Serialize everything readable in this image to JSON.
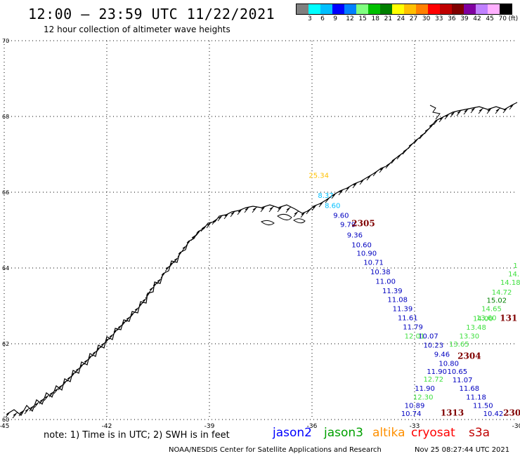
{
  "header": {
    "title": "12:00 – 23:59 UTC 11/22/2021",
    "subtitle": "12 hour collection of altimeter wave heights"
  },
  "legend": {
    "colors": [
      "#808080",
      "#00ffff",
      "#00bfff",
      "#0000ff",
      "#0080ff",
      "#80ff80",
      "#00c000",
      "#008000",
      "#ffff00",
      "#ffc000",
      "#ff8000",
      "#ff0000",
      "#c00000",
      "#800000",
      "#8000a0",
      "#c080ff",
      "#ffb0ff",
      "#000000"
    ],
    "labels": [
      "3",
      "6",
      "9",
      "12",
      "15",
      "18",
      "21",
      "24",
      "27",
      "30",
      "33",
      "36",
      "39",
      "42",
      "45",
      "70"
    ],
    "unit": "(ft)"
  },
  "axes": {
    "lon_ticks": [
      "-45",
      "-42",
      "-39",
      "-36",
      "-33",
      "-30"
    ],
    "lat_ticks": [
      "60",
      "62",
      "64",
      "66",
      "68",
      "70"
    ]
  },
  "tracks": [
    {
      "label": "2305",
      "color": "#800000"
    },
    {
      "label": "2304",
      "color": "#800000"
    },
    {
      "label": "1313",
      "color": "#800000"
    },
    {
      "label": "131",
      "color": "#800000"
    },
    {
      "label": "230",
      "color": "#800000"
    }
  ],
  "readings": [
    {
      "v": "25.34",
      "c": "#ffc000",
      "lon": -35.8,
      "lat": 66.38
    },
    {
      "v": "8.37",
      "c": "#00bfff",
      "lon": -35.6,
      "lat": 65.85
    },
    {
      "v": "8.60",
      "c": "#00bfff",
      "lon": -35.4,
      "lat": 65.58
    },
    {
      "v": "9.60",
      "c": "#0000c0",
      "lon": -35.15,
      "lat": 65.32
    },
    {
      "v": "9.79",
      "c": "#0000c0",
      "lon": -34.95,
      "lat": 65.08
    },
    {
      "v": "9.36",
      "c": "#0000c0",
      "lon": -34.75,
      "lat": 64.81
    },
    {
      "v": "10.60",
      "c": "#0000c0",
      "lon": -34.55,
      "lat": 64.55
    },
    {
      "v": "10.90",
      "c": "#0000c0",
      "lon": -34.4,
      "lat": 64.32
    },
    {
      "v": "10.71",
      "c": "#0000c0",
      "lon": -34.2,
      "lat": 64.08
    },
    {
      "v": "10.38",
      "c": "#0000c0",
      "lon": -34.0,
      "lat": 63.83
    },
    {
      "v": "11.00",
      "c": "#0000c0",
      "lon": -33.85,
      "lat": 63.58
    },
    {
      "v": "11.39",
      "c": "#0000c0",
      "lon": -33.65,
      "lat": 63.33
    },
    {
      "v": "11.08",
      "c": "#0000c0",
      "lon": -33.5,
      "lat": 63.1
    },
    {
      "v": "11.39",
      "c": "#0000c0",
      "lon": -33.35,
      "lat": 62.86
    },
    {
      "v": "11.61",
      "c": "#0000c0",
      "lon": -33.2,
      "lat": 62.62
    },
    {
      "v": "11.79",
      "c": "#0000c0",
      "lon": -33.05,
      "lat": 62.38
    },
    {
      "v": "10.07",
      "c": "#0000c0",
      "lon": -32.6,
      "lat": 62.14
    },
    {
      "v": "10.23",
      "c": "#0000c0",
      "lon": -32.45,
      "lat": 61.9
    },
    {
      "v": "9.46",
      "c": "#0000c0",
      "lon": -32.2,
      "lat": 61.66
    },
    {
      "v": "10.80",
      "c": "#0000c0",
      "lon": -32.0,
      "lat": 61.42
    },
    {
      "v": "11.90",
      "c": "#0000c0",
      "lon": -32.35,
      "lat": 61.2
    },
    {
      "v": "10.65",
      "c": "#0000c0",
      "lon": -31.75,
      "lat": 61.2
    },
    {
      "v": "11.07",
      "c": "#0000c0",
      "lon": -31.6,
      "lat": 60.98
    },
    {
      "v": "11.90",
      "c": "#0000c0",
      "lon": -32.7,
      "lat": 60.76
    },
    {
      "v": "11.68",
      "c": "#0000c0",
      "lon": -31.4,
      "lat": 60.76
    },
    {
      "v": "11.18",
      "c": "#0000c0",
      "lon": -31.2,
      "lat": 60.53
    },
    {
      "v": "10.89",
      "c": "#0000c0",
      "lon": -33.0,
      "lat": 60.31
    },
    {
      "v": "11.50",
      "c": "#0000c0",
      "lon": -31.0,
      "lat": 60.31
    },
    {
      "v": "10.74",
      "c": "#0000c0",
      "lon": -33.1,
      "lat": 60.09
    },
    {
      "v": "10.42",
      "c": "#0000c0",
      "lon": -30.7,
      "lat": 60.09
    },
    {
      "v": "12.01",
      "c": "#40e040",
      "lon": -33.0,
      "lat": 62.14
    },
    {
      "v": "13.65",
      "c": "#40e040",
      "lon": -31.7,
      "lat": 61.93
    },
    {
      "v": "13.30",
      "c": "#40e040",
      "lon": -31.4,
      "lat": 62.14
    },
    {
      "v": "13.48",
      "c": "#40e040",
      "lon": -31.2,
      "lat": 62.37
    },
    {
      "v": "14.00",
      "c": "#40e040",
      "lon": -31.0,
      "lat": 62.6
    },
    {
      "v": "13.60",
      "c": "#40e040",
      "lon": -30.9,
      "lat": 62.62
    },
    {
      "v": "14.65",
      "c": "#40e040",
      "lon": -30.75,
      "lat": 62.86
    },
    {
      "v": "15.02",
      "c": "#008000",
      "lon": -30.6,
      "lat": 63.08
    },
    {
      "v": "14.72",
      "c": "#40e040",
      "lon": -30.45,
      "lat": 63.3
    },
    {
      "v": "14.18",
      "c": "#40e040",
      "lon": -30.2,
      "lat": 63.56
    },
    {
      "v": "14.",
      "c": "#40e040",
      "lon": -30.1,
      "lat": 63.78
    },
    {
      "v": "1",
      "c": "#40e040",
      "lon": -30.05,
      "lat": 64.0
    },
    {
      "v": "12.72",
      "c": "#40e040",
      "lon": -32.45,
      "lat": 61.0
    },
    {
      "v": "12.30",
      "c": "#40e040",
      "lon": -32.75,
      "lat": 60.53
    }
  ],
  "notes": {
    "note": "note:  1) Time is in UTC;  2) SWH is in feet",
    "missions": [
      {
        "name": "jason2",
        "color": "#0000ff"
      },
      {
        "name": "jason3",
        "color": "#00a000"
      },
      {
        "name": "altika",
        "color": "#ff9000"
      },
      {
        "name": "cryosat",
        "color": "#ff0000"
      },
      {
        "name": "s3a",
        "color": "#c00000"
      }
    ],
    "credit": "NOAA/NESDIS Center for Satellite Applications and Research",
    "timestamp": "Nov 25 08:27:44 UTC 2021"
  }
}
